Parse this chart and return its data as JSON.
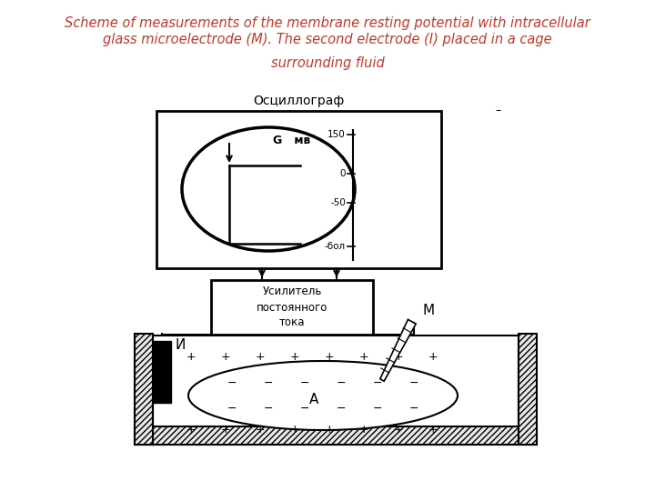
{
  "title_line1": "Scheme of measurements of the membrane resting potential with intracellular",
  "title_line2": "glass microelectrode (M). The second electrode (I) placed in a cage",
  "title_line3": "surrounding fluid",
  "title_color": "#c0392b",
  "bg_color": "#ffffff",
  "oscilloscope_label": "Осциллограф",
  "amplifier_label": "Усилитель\nпостоянного\nтока",
  "electrode_I_label": "И",
  "electrode_M_label": "М",
  "cell_label": "А",
  "scale_G": "G",
  "scale_mv": "мв",
  "scale_ticks": [
    [
      "150",
      0.18
    ],
    [
      "0",
      0.42
    ],
    [
      "-50",
      0.6
    ],
    [
      "-бол",
      0.82
    ]
  ],
  "line_color": "#000000",
  "bg_color2": "#ffffff"
}
